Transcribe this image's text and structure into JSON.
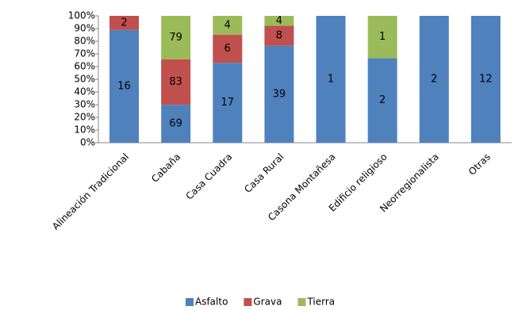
{
  "chart_data": {
    "type": "bar",
    "stacking": "percent",
    "categories": [
      "Alineación Tradicional",
      "Cabaña",
      "Casa Cuadra",
      "Casa Rural",
      "Casona Montañesa",
      "Edificio religioso",
      "Neorregionalista",
      "Otras"
    ],
    "series": [
      {
        "name": "Asfalto",
        "color": "#4f81bd",
        "values": [
          16,
          69,
          17,
          39,
          1,
          2,
          2,
          12
        ]
      },
      {
        "name": "Grava",
        "color": "#c0504d",
        "values": [
          2,
          83,
          6,
          8,
          null,
          null,
          null,
          null
        ]
      },
      {
        "name": "Tierra",
        "color": "#9bbb59",
        "values": [
          null,
          79,
          4,
          4,
          null,
          1,
          null,
          null
        ]
      }
    ],
    "ylim": [
      0,
      100
    ],
    "yticks": [
      {
        "value": 0,
        "label": "0%"
      },
      {
        "value": 10,
        "label": "10%"
      },
      {
        "value": 20,
        "label": "20%"
      },
      {
        "value": 30,
        "label": "30%"
      },
      {
        "value": 40,
        "label": "40%"
      },
      {
        "value": 50,
        "label": "50%"
      },
      {
        "value": 60,
        "label": "60%"
      },
      {
        "value": 70,
        "label": "70%"
      },
      {
        "value": 80,
        "label": "80%"
      },
      {
        "value": 90,
        "label": "90%"
      },
      {
        "value": 100,
        "label": "100%"
      }
    ],
    "legend": "bottom"
  }
}
